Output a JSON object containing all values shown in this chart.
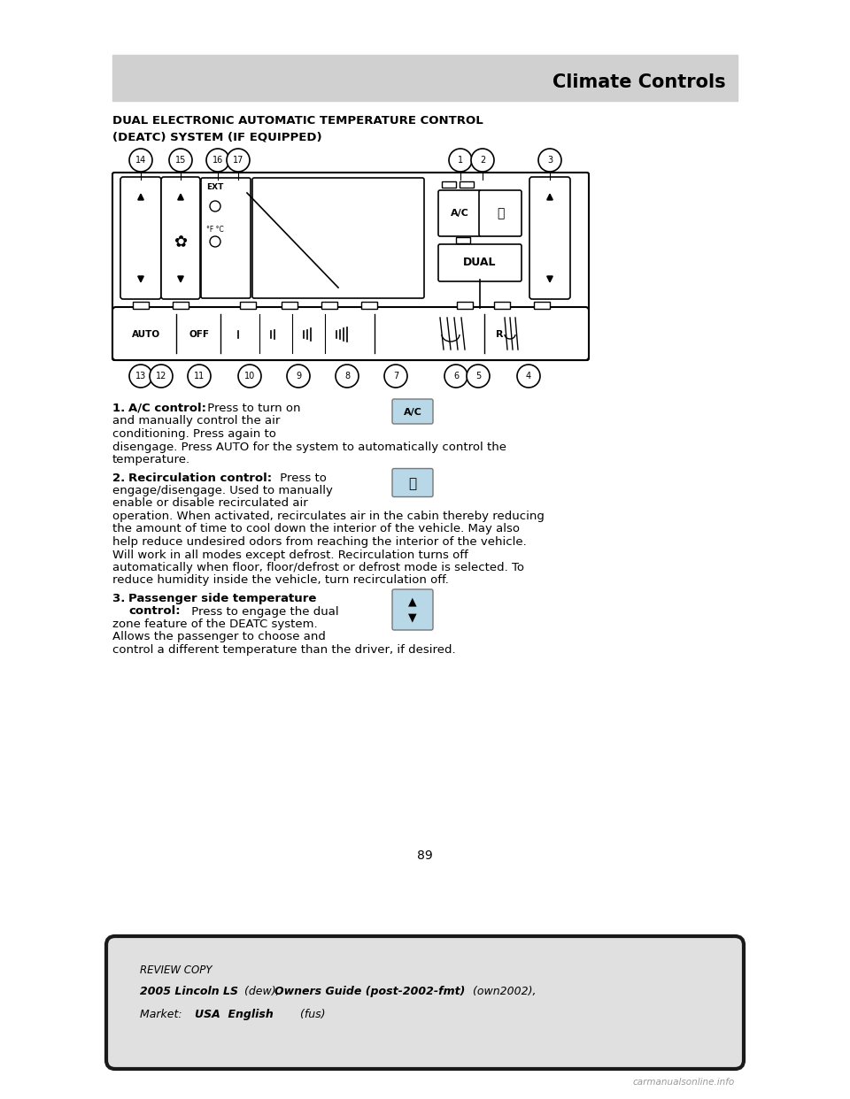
{
  "page_bg": "#ffffff",
  "header_bg": "#d0d0d0",
  "header_text": "Climate Controls",
  "section_title_line1": "DUAL ELECTRONIC AUTOMATIC TEMPERATURE CONTROL",
  "section_title_line2": "(DEATC) SYSTEM (IF EQUIPPED)",
  "footer_line1_italic": "REVIEW COPY",
  "footer_line2_bold": "2005 Lincoln LS",
  "footer_line2_italic": " (dew), ",
  "footer_line2_bold2": "Owners Guide (post-2002-fmt)",
  "footer_line2_norm": " (own2002),",
  "footer_line3_norm": "Market:  ",
  "footer_line3_bold": "USA  English",
  "footer_line3_end": " (fus)",
  "page_number": "89",
  "icon_bg": "#b8d8e8",
  "diag_line_color": "#000000",
  "text_color": "#000000"
}
